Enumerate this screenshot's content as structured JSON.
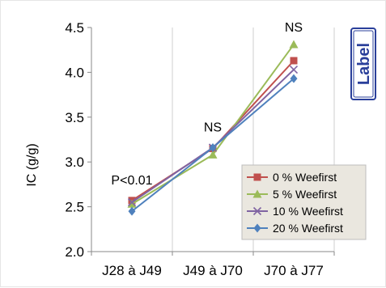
{
  "chart_data": {
    "type": "line",
    "categories": [
      "J28 à J49",
      "J49 à J70",
      "J70 à J77"
    ],
    "series": [
      {
        "name": "0 % Weefirst",
        "color": "#c0504d",
        "marker": "square",
        "values": [
          2.57,
          3.15,
          4.13
        ]
      },
      {
        "name": "5 % Weefirst",
        "color": "#9bbb59",
        "marker": "triangle",
        "values": [
          2.53,
          3.08,
          4.31
        ]
      },
      {
        "name": "10 % Weefirst",
        "color": "#8064a2",
        "marker": "x",
        "values": [
          2.55,
          3.16,
          4.03
        ]
      },
      {
        "name": "20 % Weefirst",
        "color": "#4f81bd",
        "marker": "diamond",
        "values": [
          2.45,
          3.16,
          3.93
        ]
      }
    ],
    "title": "",
    "xlabel": "",
    "ylabel": "IC (g/g)",
    "ylim": [
      2.0,
      4.5
    ],
    "yticks": [
      "2.0",
      "2.5",
      "3.0",
      "3.5",
      "4.0",
      "4.5"
    ],
    "annotations": [
      "P<0.01",
      "NS",
      "NS"
    ],
    "grid": "vertical",
    "legend": "bottom-right"
  },
  "stamp": {
    "text": "Label",
    "color": "#2a3f9a"
  }
}
